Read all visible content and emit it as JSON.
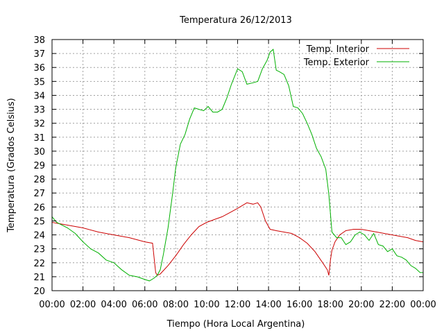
{
  "chart_data": {
    "type": "line",
    "title": "Temperatura 26/12/2013",
    "xlabel": "Tiempo (Hora Local Argentina)",
    "ylabel": "Temperatura (Grados Celsius)",
    "xlim": [
      0,
      24
    ],
    "ylim": [
      20,
      38
    ],
    "xticks": [
      "00:00",
      "02:00",
      "04:00",
      "06:00",
      "08:00",
      "10:00",
      "12:00",
      "14:00",
      "16:00",
      "18:00",
      "20:00",
      "22:00",
      "00:00"
    ],
    "yticks": [
      "20",
      "21",
      "22",
      "23",
      "24",
      "25",
      "26",
      "27",
      "28",
      "29",
      "30",
      "31",
      "32",
      "33",
      "34",
      "35",
      "36",
      "37",
      "38"
    ],
    "grid": true,
    "legend_position": "top-right",
    "series": [
      {
        "name": "Temp. Interior",
        "color": "#cc0000",
        "x": [
          0,
          0.5,
          1,
          2,
          3,
          4,
          5,
          6,
          6.5,
          6.7,
          6.8,
          7,
          7.5,
          8,
          8.5,
          9,
          9.5,
          10,
          10.5,
          11,
          11.5,
          12,
          12.3,
          12.6,
          13,
          13.3,
          13.5,
          13.8,
          14.1,
          14.5,
          15,
          15.5,
          16,
          16.5,
          17,
          17.5,
          17.8,
          17.9,
          18,
          18.1,
          18.3,
          18.6,
          19,
          19.5,
          20,
          20.5,
          21,
          22,
          23,
          23.5,
          24
        ],
        "y": [
          24.9,
          24.8,
          24.7,
          24.5,
          24.2,
          24.0,
          23.8,
          23.5,
          23.4,
          21.3,
          21.1,
          21.2,
          21.8,
          22.5,
          23.3,
          24.0,
          24.6,
          24.9,
          25.1,
          25.3,
          25.6,
          25.9,
          26.1,
          26.3,
          26.2,
          26.3,
          26.0,
          25.0,
          24.4,
          24.3,
          24.2,
          24.1,
          23.8,
          23.4,
          22.8,
          22.0,
          21.5,
          21.1,
          22.2,
          22.9,
          23.5,
          24.0,
          24.3,
          24.4,
          24.4,
          24.3,
          24.2,
          24.0,
          23.8,
          23.6,
          23.5
        ]
      },
      {
        "name": "Temp. Exterior",
        "color": "#00b000",
        "x": [
          0,
          0.3,
          1,
          1.5,
          2,
          2.5,
          3,
          3.5,
          4,
          4.5,
          5,
          5.5,
          6,
          6.3,
          6.6,
          6.8,
          7,
          7.2,
          7.5,
          7.8,
          8,
          8.3,
          8.6,
          8.9,
          9.2,
          9.5,
          9.8,
          10.1,
          10.4,
          10.7,
          11,
          11.3,
          11.6,
          12,
          12.3,
          12.6,
          13,
          13.3,
          13.6,
          13.9,
          14.1,
          14.3,
          14.5,
          14.7,
          15,
          15.3,
          15.6,
          15.9,
          16.2,
          16.5,
          16.8,
          17.1,
          17.4,
          17.7,
          17.9,
          18.1,
          18.4,
          18.7,
          19,
          19.3,
          19.6,
          19.9,
          20.2,
          20.5,
          20.8,
          21.1,
          21.4,
          21.7,
          22,
          22.3,
          22.6,
          22.9,
          23.2,
          23.5,
          23.8,
          24
        ],
        "y": [
          25.3,
          24.9,
          24.5,
          24.1,
          23.5,
          23.0,
          22.7,
          22.2,
          22.0,
          21.5,
          21.1,
          21.0,
          20.8,
          20.7,
          20.9,
          21.1,
          21.5,
          22.6,
          24.5,
          27.0,
          28.8,
          30.5,
          31.2,
          32.3,
          33.1,
          33.0,
          32.9,
          33.2,
          32.8,
          32.8,
          33.0,
          33.8,
          34.8,
          35.9,
          35.7,
          34.8,
          34.9,
          35.0,
          35.9,
          36.5,
          37.1,
          37.3,
          35.8,
          35.7,
          35.5,
          34.7,
          33.2,
          33.1,
          32.7,
          32.0,
          31.2,
          30.2,
          29.6,
          28.7,
          26.9,
          24.2,
          23.8,
          23.8,
          23.3,
          23.5,
          24.0,
          24.2,
          24.0,
          23.6,
          24.1,
          23.3,
          23.2,
          22.8,
          23.0,
          22.5,
          22.4,
          22.2,
          21.8,
          21.6,
          21.3,
          21.3
        ]
      }
    ]
  }
}
